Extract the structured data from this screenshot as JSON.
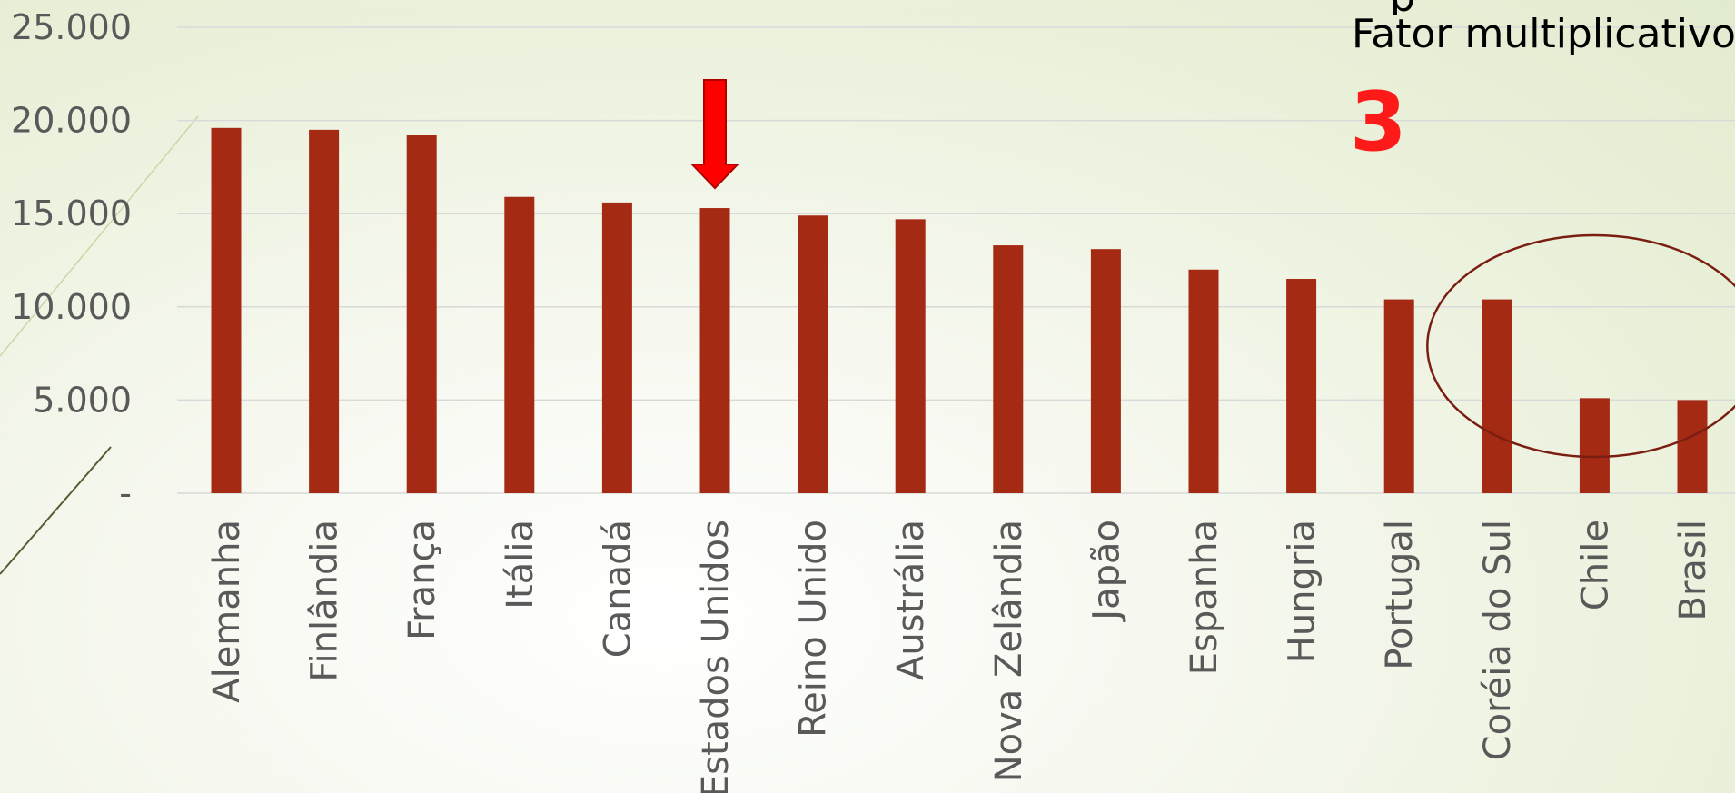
{
  "chart_data": {
    "type": "bar",
    "categories": [
      "Alemanha",
      "Finlândia",
      "França",
      "Itália",
      "Canadá",
      "Estados Unidos",
      "Reino Unido",
      "Austrália",
      "Nova Zelândia",
      "Japão",
      "Espanha",
      "Hungria",
      "Portugal",
      "Coréia do Sul",
      "Chile",
      "Brasil"
    ],
    "values": [
      19600,
      19500,
      19200,
      15900,
      15600,
      15300,
      14900,
      14700,
      13300,
      13100,
      12000,
      11500,
      10400,
      10400,
      5100,
      5000
    ],
    "ylim": [
      0,
      25000
    ],
    "yticks": [
      0,
      5000,
      10000,
      15000,
      20000,
      25000
    ],
    "ytick_labels": [
      "-",
      "5.000",
      "10.000",
      "15.000",
      "20.000",
      "25.000"
    ],
    "grid": true,
    "bar_color": "#a52a13",
    "highlight": {
      "category": "Estados Unidos",
      "marker": "arrow-down",
      "color": "#ff0000"
    },
    "circled_categories": [
      "Coréia do Sul",
      "Chile",
      "Brasil"
    ],
    "circle_color": "#7a1e12"
  },
  "annotation": {
    "line1": "p",
    "line2": "Fator multiplicativo",
    "value": "3",
    "value_color": "#ff1a1a"
  },
  "colors": {
    "gridline": "#d9d9d9",
    "axis_text": "#595959"
  }
}
